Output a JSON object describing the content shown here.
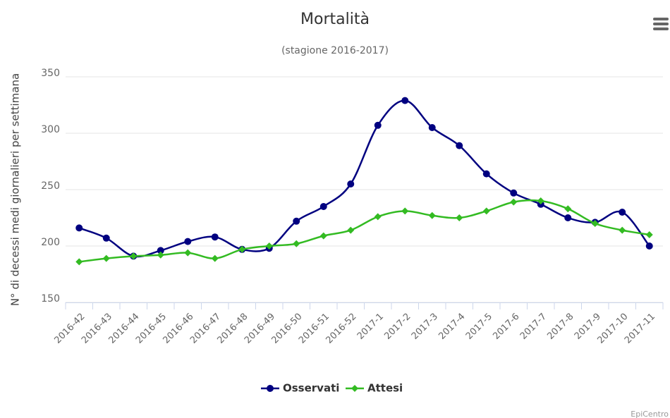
{
  "chart_data": {
    "type": "line",
    "smooth": true,
    "title": "Mortalità",
    "subtitle": "(stagione 2016-2017)",
    "y_label": "N° di decessi medi giornalieri per settimana",
    "categories": [
      "2016-42",
      "2016-43",
      "2016-44",
      "2016-45",
      "2016-46",
      "2016-47",
      "2016-48",
      "2016-49",
      "2016-50",
      "2016-51",
      "2016-52",
      "2017-1",
      "2017-2",
      "2017-3",
      "2017-4",
      "2017-5",
      "2017-6",
      "2017-7",
      "2017-8",
      "2017-9",
      "2017-10",
      "2017-11"
    ],
    "series": [
      {
        "name": "Osservati",
        "color": "#000080",
        "marker": "circle",
        "values": [
          216,
          207,
          191,
          196,
          204,
          208,
          197,
          198,
          222,
          235,
          255,
          307,
          329,
          305,
          289,
          264,
          247,
          237,
          225,
          221,
          230,
          200
        ]
      },
      {
        "name": "Attesi",
        "color": "#33bb22",
        "marker": "diamond",
        "values": [
          186,
          189,
          191,
          192,
          194,
          189,
          197,
          200,
          202,
          209,
          214,
          226,
          231,
          227,
          225,
          231,
          239,
          240,
          233,
          220,
          214,
          210
        ]
      }
    ],
    "ylim": [
      150,
      350
    ],
    "yticks": [
      150,
      200,
      250,
      300,
      350
    ],
    "grid": true,
    "legend": "bottom",
    "credits": "EpiCentro"
  }
}
